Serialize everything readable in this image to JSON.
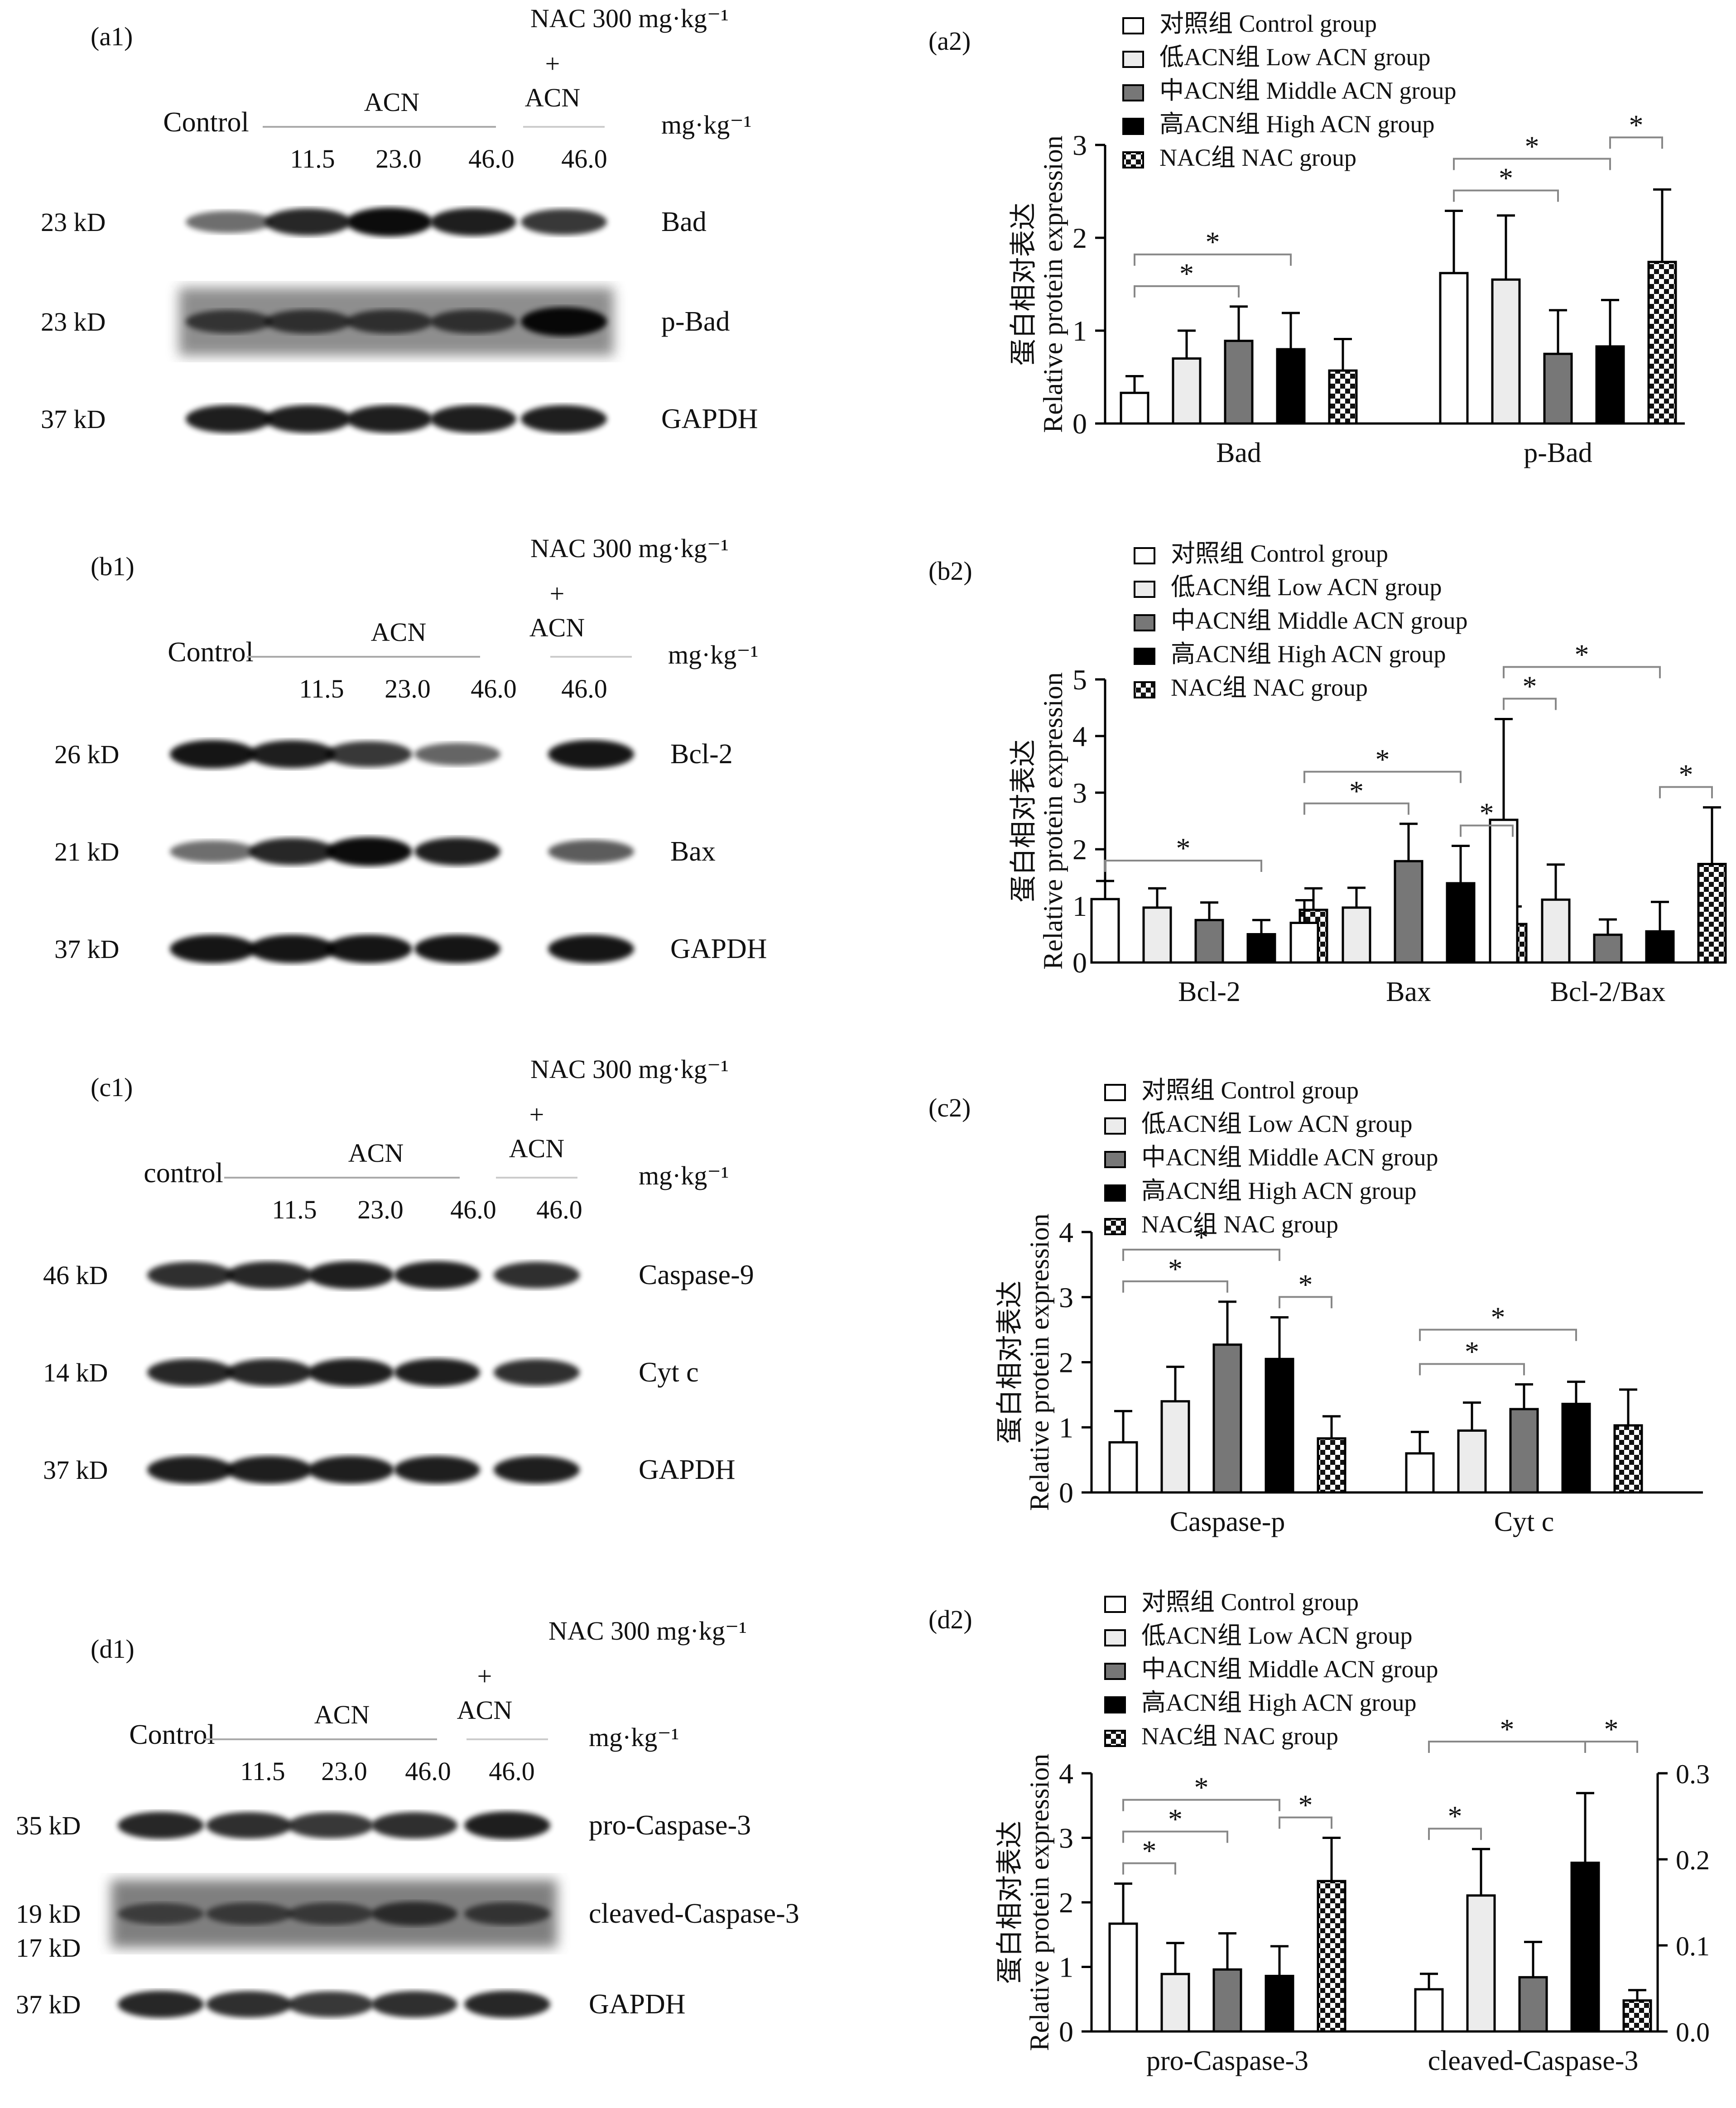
{
  "units_kd": "kD",
  "blot_common": {
    "nac_label": "NAC 300 mg·kg⁻¹",
    "plus": "+",
    "acn": "ACN",
    "unit": "mg·kg⁻¹",
    "doses": [
      "11.5",
      "23.0",
      "46.0",
      "46.0"
    ]
  },
  "blots": [
    {
      "panel": "(a1)",
      "control": "Control",
      "rows": [
        {
          "kd": "23 kD",
          "protein": "Bad"
        },
        {
          "kd": "23 kD",
          "protein": "p-Bad"
        },
        {
          "kd": "37 kD",
          "protein": "GAPDH"
        }
      ]
    },
    {
      "panel": "(b1)",
      "control": "Control",
      "rows": [
        {
          "kd": "26 kD",
          "protein": "Bcl-2"
        },
        {
          "kd": "21 kD",
          "protein": "Bax"
        },
        {
          "kd": "37 kD",
          "protein": "GAPDH"
        }
      ]
    },
    {
      "panel": "(c1)",
      "control": "control",
      "rows": [
        {
          "kd": "46 kD",
          "protein": "Caspase-9"
        },
        {
          "kd": "14 kD",
          "protein": "Cyt c"
        },
        {
          "kd": "37 kD",
          "protein": "GAPDH"
        }
      ]
    },
    {
      "panel": "(d1)",
      "control": "Control",
      "rows": [
        {
          "kd": "35 kD",
          "protein": "pro-Caspase-3"
        },
        {
          "kd": "19 kD",
          "kd2": "17 kD",
          "protein": "cleaved-Caspase-3"
        },
        {
          "kd": "37 kD",
          "protein": "GAPDH"
        }
      ]
    }
  ],
  "legend_entries": [
    {
      "label": "对照组 Control group",
      "style": "white"
    },
    {
      "label": "低ACN组 Low ACN group",
      "style": "light"
    },
    {
      "label": "中ACN组 Middle ACN group",
      "style": "gray"
    },
    {
      "label": "高ACN组 High ACN group",
      "style": "black"
    },
    {
      "label": "NAC组 NAC group",
      "style": "check"
    }
  ],
  "colors": {
    "white": "#ffffff",
    "light": "#ececec",
    "gray": "#777777",
    "black": "#000000",
    "check": "#000000"
  },
  "ylabel_cn": "蛋白相对表达",
  "ylabel_en": "Relative protein expression",
  "chart_data": [
    {
      "panel": "(a2)",
      "type": "bar",
      "ylim": [
        0,
        3
      ],
      "yticks": [
        "0",
        "1",
        "2",
        "3"
      ],
      "categories": [
        "Bad",
        "p-Bad"
      ],
      "series": [
        {
          "name": "对照组 Control group",
          "values": [
            0.33,
            1.62
          ],
          "errors": [
            0.18,
            0.67
          ]
        },
        {
          "name": "低ACN组 Low ACN group",
          "values": [
            0.7,
            1.55
          ],
          "errors": [
            0.3,
            0.69
          ]
        },
        {
          "name": "中ACN组 Middle ACN group",
          "values": [
            0.89,
            0.75
          ],
          "errors": [
            0.37,
            0.47
          ]
        },
        {
          "name": "高ACN组 High ACN group",
          "values": [
            0.8,
            0.83
          ],
          "errors": [
            0.39,
            0.5
          ]
        },
        {
          "name": "NAC组 NAC group",
          "values": [
            0.57,
            1.74
          ],
          "errors": [
            0.34,
            0.78
          ]
        }
      ],
      "sig": [
        {
          "c": 0,
          "a": 0,
          "b": 2,
          "level": 1
        },
        {
          "c": 0,
          "a": 0,
          "b": 3,
          "level": 2
        },
        {
          "c": 1,
          "a": 0,
          "b": 2,
          "level": 1
        },
        {
          "c": 1,
          "a": 0,
          "b": 3,
          "level": 2
        },
        {
          "c": 1,
          "a": 3,
          "b": 4,
          "level": 2
        }
      ]
    },
    {
      "panel": "(b2)",
      "type": "bar",
      "ylim": [
        0,
        5
      ],
      "yticks": [
        "0",
        "1",
        "2",
        "3",
        "4",
        "5"
      ],
      "categories": [
        "Bcl-2",
        "Bax",
        "Bcl-2/Bax"
      ],
      "series": [
        {
          "name": "对照组 Control group",
          "values": [
            1.12,
            0.7,
            2.52
          ],
          "errors": [
            0.32,
            0.4,
            1.78
          ]
        },
        {
          "name": "低ACN组 Low ACN group",
          "values": [
            0.97,
            0.97,
            1.11
          ],
          "errors": [
            0.34,
            0.35,
            0.62
          ]
        },
        {
          "name": "中ACN组 Middle ACN group",
          "values": [
            0.75,
            1.79,
            0.49
          ],
          "errors": [
            0.31,
            0.66,
            0.27
          ]
        },
        {
          "name": "高ACN组 High ACN group",
          "values": [
            0.5,
            1.4,
            0.55
          ],
          "errors": [
            0.25,
            0.66,
            0.52
          ]
        },
        {
          "name": "NAC组 NAC group",
          "values": [
            0.93,
            0.68,
            1.74
          ],
          "errors": [
            0.38,
            0.31,
            1.0
          ]
        }
      ],
      "sig": [
        {
          "c": 0,
          "a": 0,
          "b": 3,
          "level": 1
        },
        {
          "c": 1,
          "a": 0,
          "b": 2,
          "level": 1
        },
        {
          "c": 1,
          "a": 0,
          "b": 3,
          "level": 2
        },
        {
          "c": 1,
          "a": 3,
          "b": 4,
          "level": 1
        },
        {
          "c": 2,
          "a": 0,
          "b": 1,
          "level": 1
        },
        {
          "c": 2,
          "a": 0,
          "b": 3,
          "level": 2
        },
        {
          "c": 2,
          "a": 3,
          "b": 4,
          "level": 1
        }
      ]
    },
    {
      "panel": "(c2)",
      "type": "bar",
      "ylim": [
        0,
        4
      ],
      "yticks": [
        "0",
        "1",
        "2",
        "3",
        "4"
      ],
      "categories": [
        "Caspase-p",
        "Cyt c"
      ],
      "series": [
        {
          "name": "对照组 Control group",
          "values": [
            0.77,
            0.6
          ],
          "errors": [
            0.48,
            0.33
          ]
        },
        {
          "name": "低ACN组 Low ACN group",
          "values": [
            1.4,
            0.95
          ],
          "errors": [
            0.53,
            0.43
          ]
        },
        {
          "name": "中ACN组 Middle ACN group",
          "values": [
            2.27,
            1.28
          ],
          "errors": [
            0.66,
            0.38
          ]
        },
        {
          "name": "高ACN组 High ACN group",
          "values": [
            2.05,
            1.36
          ],
          "errors": [
            0.64,
            0.34
          ]
        },
        {
          "name": "NAC组 NAC group",
          "values": [
            0.83,
            1.03
          ],
          "errors": [
            0.34,
            0.55
          ]
        }
      ],
      "sig": [
        {
          "c": 0,
          "a": 0,
          "b": 2,
          "level": 1
        },
        {
          "c": 0,
          "a": 0,
          "b": 3,
          "level": 2
        },
        {
          "c": 0,
          "a": 3,
          "b": 4,
          "level": 1
        },
        {
          "c": 1,
          "a": 0,
          "b": 2,
          "level": 1
        },
        {
          "c": 1,
          "a": 0,
          "b": 3,
          "level": 2
        }
      ]
    },
    {
      "panel": "(d2)",
      "type": "bar",
      "ylim": [
        0,
        4
      ],
      "yticks": [
        "0",
        "1",
        "2",
        "3",
        "4"
      ],
      "y2lim": [
        0,
        0.3
      ],
      "y2ticks": [
        "0.0",
        "0.1",
        "0.2",
        "0.3"
      ],
      "categories": [
        "pro-Caspase-3",
        "cleaved-Caspase-3"
      ],
      "axis_per_category": [
        "left",
        "right"
      ],
      "series": [
        {
          "name": "对照组 Control group",
          "values": [
            1.67,
            0.049
          ],
          "errors": [
            0.62,
            0.018
          ]
        },
        {
          "name": "低ACN组 Low ACN group",
          "values": [
            0.89,
            0.158
          ],
          "errors": [
            0.48,
            0.054
          ]
        },
        {
          "name": "中ACN组 Middle ACN group",
          "values": [
            0.96,
            0.063
          ],
          "errors": [
            0.56,
            0.041
          ]
        },
        {
          "name": "高ACN组 High ACN group",
          "values": [
            0.86,
            0.196
          ],
          "errors": [
            0.46,
            0.081
          ]
        },
        {
          "name": "NAC组 NAC group",
          "values": [
            2.33,
            0.036
          ],
          "errors": [
            0.67,
            0.012
          ]
        }
      ],
      "sig": [
        {
          "c": 0,
          "a": 0,
          "b": 1,
          "level": 1
        },
        {
          "c": 0,
          "a": 0,
          "b": 2,
          "level": 2
        },
        {
          "c": 0,
          "a": 0,
          "b": 3,
          "level": 3
        },
        {
          "c": 0,
          "a": 3,
          "b": 4,
          "level": 1
        },
        {
          "c": 1,
          "a": 0,
          "b": 1,
          "level": 1
        },
        {
          "c": 1,
          "a": 0,
          "b": 3,
          "level": 3
        },
        {
          "c": 1,
          "a": 3,
          "b": 4,
          "level": 3
        }
      ]
    }
  ]
}
